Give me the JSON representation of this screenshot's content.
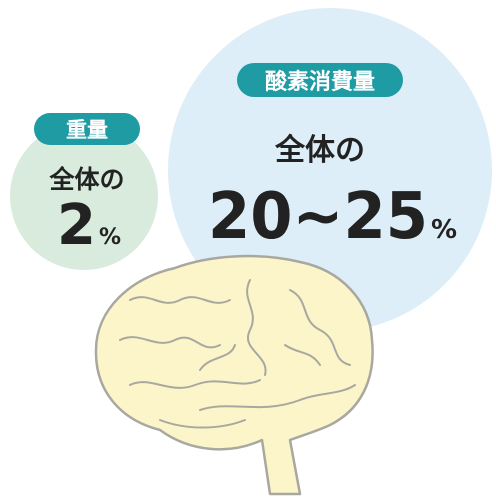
{
  "weight": {
    "label": "重量",
    "prefix": "全体の",
    "number": "2",
    "unit": "%"
  },
  "oxygen": {
    "label": "酸素消費量",
    "prefix": "全体の",
    "number": "20~25",
    "unit": "%"
  }
}
